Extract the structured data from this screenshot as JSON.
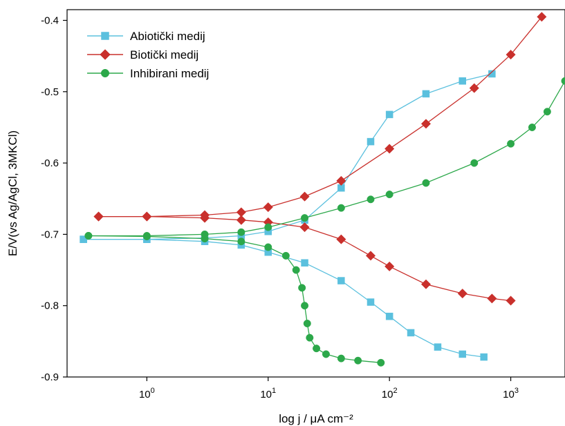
{
  "chart_data": {
    "type": "scatter",
    "title": "",
    "xlabel": "log j / μA cm⁻²",
    "ylabel": "E/V(vs Ag/AgCl, 3MKCl)",
    "xscale": "log",
    "xlim": [
      0.22,
      2800
    ],
    "ylim": [
      -0.9,
      -0.385
    ],
    "x_ticks": [
      1,
      10,
      100,
      1000
    ],
    "x_tick_labels": [
      {
        "base": "10",
        "exp": "0"
      },
      {
        "base": "10",
        "exp": "1"
      },
      {
        "base": "10",
        "exp": "2"
      },
      {
        "base": "10",
        "exp": "3"
      }
    ],
    "y_ticks": [
      -0.9,
      -0.8,
      -0.7,
      -0.6,
      -0.5,
      -0.4
    ],
    "y_tick_labels": [
      "-0.9",
      "-0.8",
      "-0.7",
      "-0.6",
      "-0.5",
      "-0.4"
    ],
    "grid": false,
    "legend_position": "top-left",
    "series": [
      {
        "name": "Abiotički medij",
        "color": "#5bc0de",
        "marker": "square",
        "branches": [
          {
            "x": [
              0.3,
              1,
              3,
              6,
              10,
              20,
              40,
              70,
              100,
              200,
              400,
              700
            ],
            "y": [
              -0.707,
              -0.707,
              -0.705,
              -0.702,
              -0.696,
              -0.68,
              -0.635,
              -0.57,
              -0.532,
              -0.503,
              -0.485,
              -0.475
            ]
          },
          {
            "x": [
              0.3,
              1,
              3,
              6,
              10,
              20,
              40,
              70,
              100,
              150,
              250,
              400,
              600
            ],
            "y": [
              -0.707,
              -0.707,
              -0.71,
              -0.715,
              -0.725,
              -0.74,
              -0.765,
              -0.795,
              -0.815,
              -0.838,
              -0.858,
              -0.868,
              -0.872
            ]
          }
        ]
      },
      {
        "name": "Biotički medij",
        "color": "#c9302c",
        "marker": "diamond",
        "branches": [
          {
            "x": [
              0.4,
              1,
              3,
              6,
              10,
              20,
              40,
              100,
              200,
              500,
              1000,
              1800
            ],
            "y": [
              -0.675,
              -0.675,
              -0.673,
              -0.669,
              -0.662,
              -0.647,
              -0.625,
              -0.58,
              -0.545,
              -0.495,
              -0.448,
              -0.395
            ]
          },
          {
            "x": [
              0.4,
              1,
              3,
              6,
              10,
              20,
              40,
              70,
              100,
              200,
              400,
              700,
              1000
            ],
            "y": [
              -0.675,
              -0.675,
              -0.677,
              -0.68,
              -0.683,
              -0.69,
              -0.707,
              -0.73,
              -0.745,
              -0.77,
              -0.783,
              -0.79,
              -0.793
            ]
          }
        ]
      },
      {
        "name": "Inhibirani medij",
        "color": "#2ca84a",
        "marker": "circle",
        "branches": [
          {
            "x": [
              0.33,
              1,
              3,
              6,
              10,
              20,
              40,
              70,
              100,
              200,
              500,
              1000,
              1500,
              2000,
              2800
            ],
            "y": [
              -0.702,
              -0.702,
              -0.7,
              -0.697,
              -0.69,
              -0.677,
              -0.663,
              -0.651,
              -0.644,
              -0.628,
              -0.6,
              -0.573,
              -0.55,
              -0.528,
              -0.485
            ]
          },
          {
            "x": [
              0.33,
              1,
              3,
              6,
              10,
              14,
              17,
              19,
              20,
              21,
              22,
              25,
              30,
              40,
              55,
              85
            ],
            "y": [
              -0.702,
              -0.703,
              -0.706,
              -0.71,
              -0.718,
              -0.73,
              -0.75,
              -0.775,
              -0.8,
              -0.825,
              -0.845,
              -0.86,
              -0.868,
              -0.874,
              -0.877,
              -0.88
            ]
          }
        ]
      }
    ]
  }
}
